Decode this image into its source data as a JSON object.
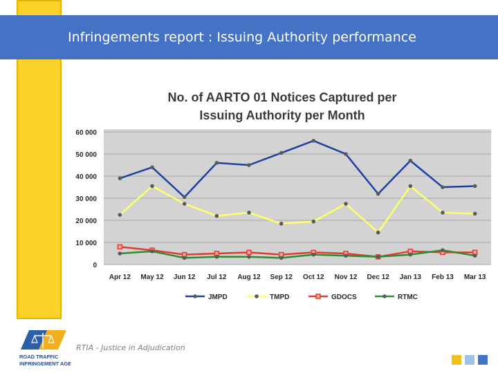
{
  "header": {
    "title": "Infringements report : Issuing Authority performance"
  },
  "footer": {
    "tagline": "RTIA - Justice in Adjudication",
    "logo_text": [
      "ROAD TRAFFIC",
      "INFRINGEMENT AGENCY"
    ]
  },
  "colors": {
    "header_band": "#4472c4",
    "accent_yellow": "#fcd12a",
    "square_yellow": "#f0c020",
    "square_light_blue": "#9dc3e6",
    "square_blue": "#4472c4"
  },
  "chart_data": {
    "type": "line",
    "title": "No. of AARTO 01 Notices Captured per Issuing Authority per Month",
    "title_lines": [
      "No. of AARTO 01 Notices Captured per",
      "Issuing Authority per Month"
    ],
    "xlabel": "",
    "ylabel": "",
    "categories": [
      "Apr 12",
      "May 12",
      "Jun 12",
      "Jul 12",
      "Aug 12",
      "Sep 12",
      "Oct 12",
      "Nov 12",
      "Dec 12",
      "Jan 13",
      "Feb 13",
      "Mar 13"
    ],
    "ylim": [
      0,
      60000
    ],
    "yticks": [
      0,
      10000,
      20000,
      30000,
      40000,
      50000,
      60000
    ],
    "ytick_labels": [
      "0",
      "10 000",
      "20 000",
      "30 000",
      "40 000",
      "50 000",
      "60 000"
    ],
    "grid": true,
    "legend_position": "bottom",
    "series": [
      {
        "name": "JMPD",
        "color": "#1f3fa0",
        "marker": "circle",
        "values": [
          39000,
          44000,
          30500,
          46000,
          45000,
          50500,
          56000,
          50000,
          32000,
          47000,
          35000,
          35500
        ]
      },
      {
        "name": "TMPD",
        "color": "#ffff66",
        "marker": "circle",
        "values": [
          22500,
          35500,
          27500,
          22000,
          23500,
          18500,
          19500,
          27500,
          14500,
          35500,
          23500,
          23000
        ]
      },
      {
        "name": "GDOCS",
        "color": "#e03c31",
        "marker": "square",
        "values": [
          8000,
          6500,
          4500,
          5000,
          5500,
          4500,
          5500,
          5000,
          3500,
          6000,
          5500,
          5500
        ]
      },
      {
        "name": "RTMC",
        "color": "#2e8b2e",
        "marker": "circle",
        "values": [
          5000,
          6000,
          3000,
          3500,
          3500,
          3000,
          4500,
          4000,
          3500,
          4500,
          6500,
          4000
        ]
      }
    ]
  }
}
